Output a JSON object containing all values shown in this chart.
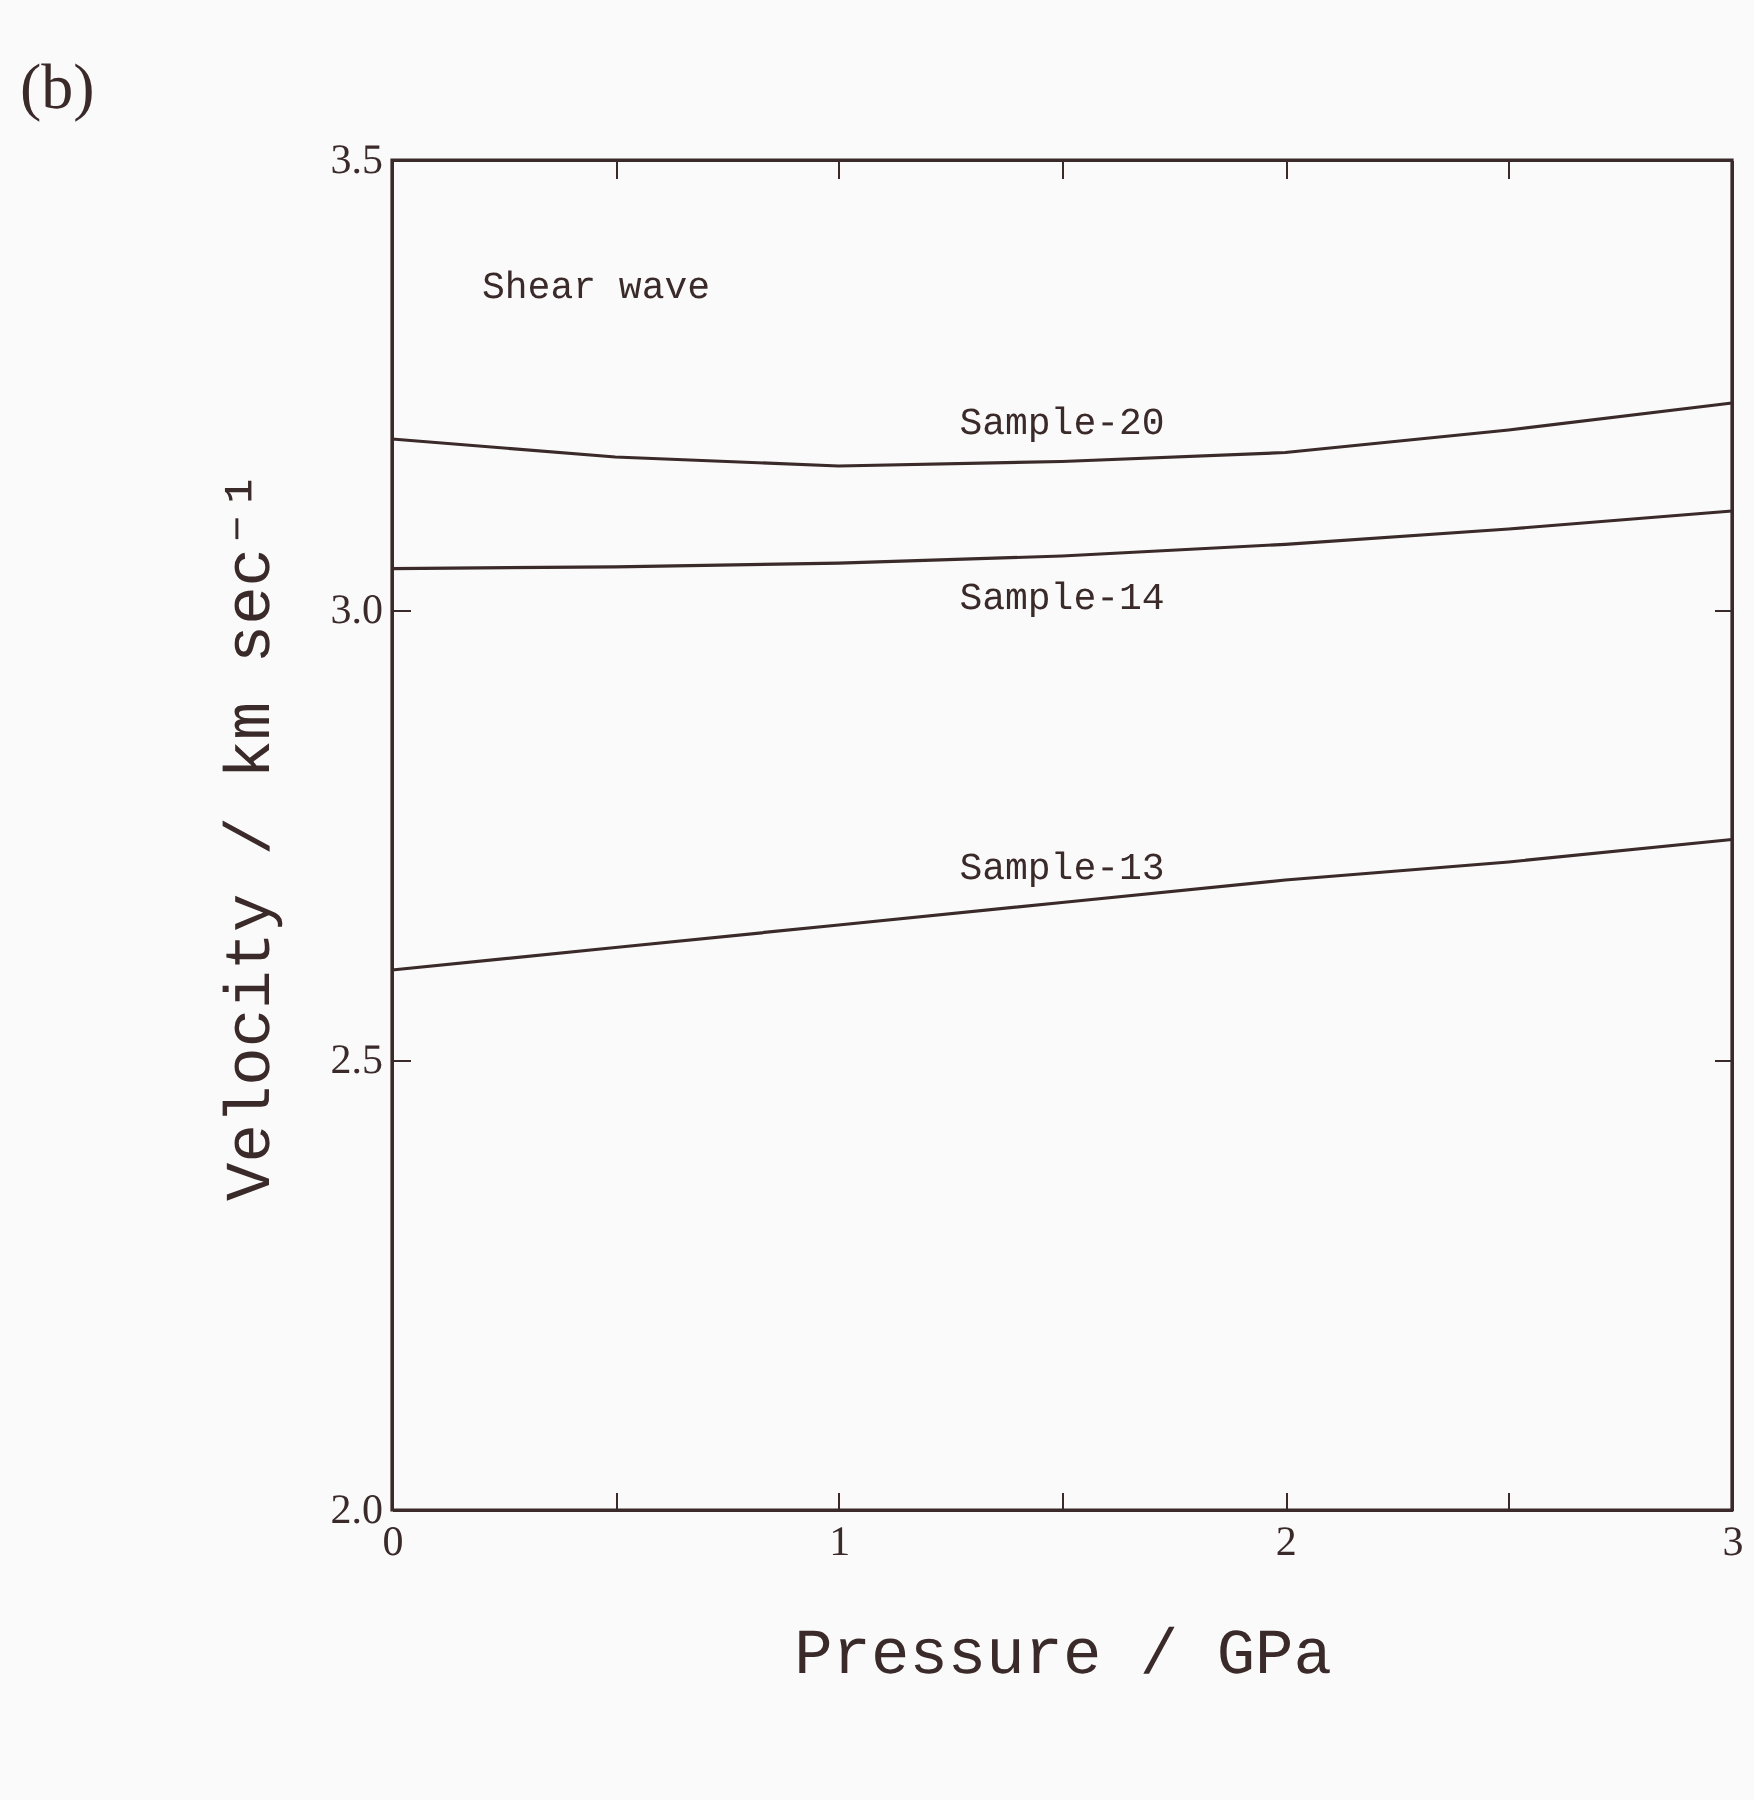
{
  "chart_data": {
    "type": "line",
    "title": "(b)",
    "xlabel": "Pressure / GPa",
    "ylabel": "Velocity / km sec⁻¹",
    "annotations": [
      "Shear wave"
    ],
    "x": [
      0,
      0.5,
      1,
      1.5,
      2,
      2.5,
      3
    ],
    "series": [
      {
        "name": "Sample-20",
        "color": "#3a2a2a",
        "values": [
          3.19,
          3.17,
          3.16,
          3.165,
          3.175,
          3.2,
          3.23
        ]
      },
      {
        "name": "Sample-14",
        "color": "#3a2a2a",
        "values": [
          3.046,
          3.048,
          3.052,
          3.06,
          3.073,
          3.09,
          3.11
        ]
      },
      {
        "name": "Sample-13",
        "color": "#3a2a2a",
        "values": [
          2.6,
          2.625,
          2.65,
          2.675,
          2.7,
          2.72,
          2.745
        ]
      }
    ],
    "xlim": [
      0,
      3
    ],
    "xticks": [
      0,
      {
        "value": 0.5,
        "label": null
      },
      1,
      {
        "value": 1.5,
        "label": null
      },
      2,
      {
        "value": 2.5,
        "label": null
      },
      3
    ],
    "ylim": [
      2.0,
      3.5
    ],
    "yticks": [
      {
        "value": 2.0,
        "label": "2.0"
      },
      {
        "value": 2.5,
        "label": "2.5"
      },
      {
        "value": 3.0,
        "label": "3.0"
      },
      {
        "value": 3.5,
        "label": "3.5"
      }
    ],
    "grid": false,
    "legend": false,
    "line_style": "solid",
    "marker": "none"
  }
}
